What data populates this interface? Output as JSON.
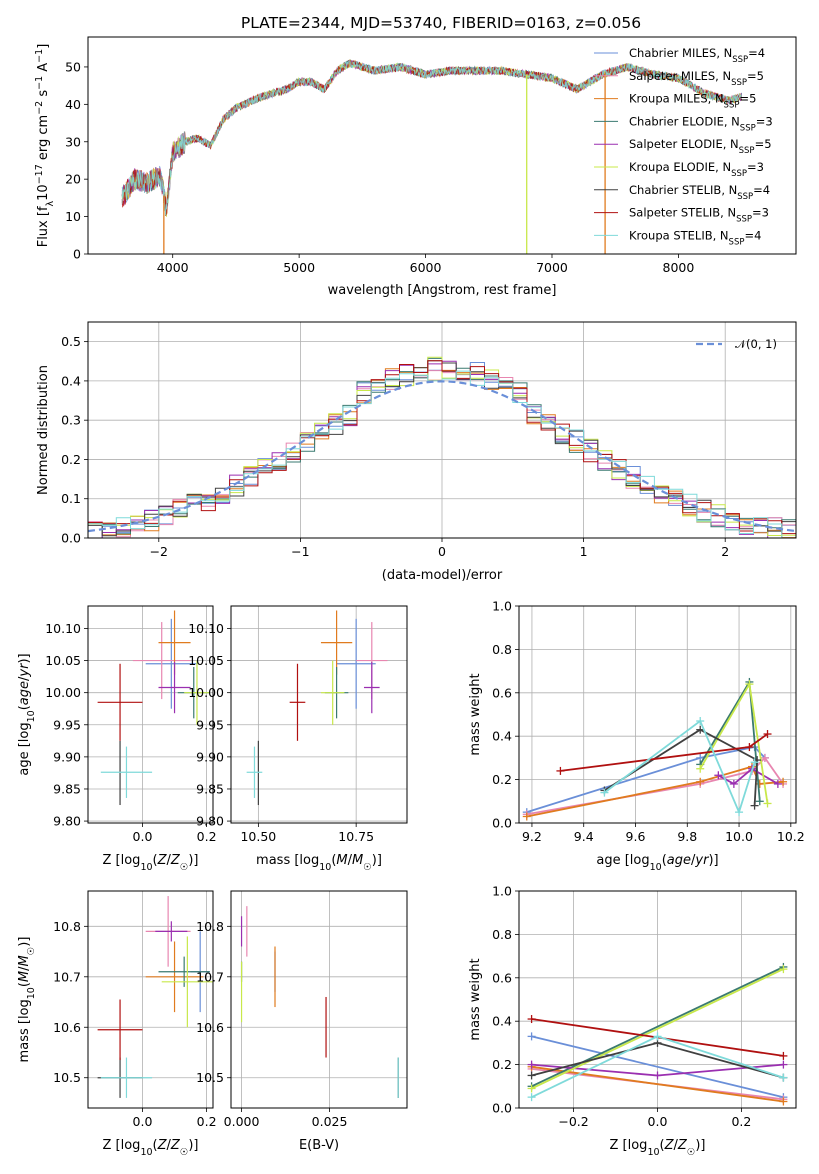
{
  "title": "PLATE=2344, MJD=53740, FIBERID=0163, z=0.056",
  "models": [
    {
      "name": "Chabrier MILES",
      "n": "4",
      "color": "#6a8fd8"
    },
    {
      "name": "Salpeter MILES",
      "n": "5",
      "color": "#e886b0"
    },
    {
      "name": "Kroupa MILES",
      "n": "5",
      "color": "#e07b1f"
    },
    {
      "name": "Chabrier ELODIE",
      "n": "3",
      "color": "#3a7a70"
    },
    {
      "name": "Salpeter ELODIE",
      "n": "5",
      "color": "#9a2fb0"
    },
    {
      "name": "Kroupa ELODIE",
      "n": "3",
      "color": "#c8e84a"
    },
    {
      "name": "Chabrier STELIB",
      "n": "4",
      "color": "#404040"
    },
    {
      "name": "Salpeter STELIB",
      "n": "3",
      "color": "#b01010"
    },
    {
      "name": "Kroupa STELIB",
      "n": "4",
      "color": "#7fdada"
    }
  ],
  "labels": {
    "spec_x": "wavelength [Angstrom, rest frame]",
    "spec_y": "Flux [f",
    "resid_x": "(data-model)/error",
    "resid_y": "Normed distribution",
    "gauss": "𝒩(0, 1)",
    "age_y": "age  [log",
    "mass_y": "mass [log",
    "z_x": "Z [log",
    "mass_x": "mass [log",
    "ebv_x": "E(B-V)",
    "mw_y": "mass weight",
    "age_x": "age  [log"
  },
  "chart_data": [
    {
      "type": "line",
      "title": "PLATE=2344, MJD=53740, FIBERID=0163, z=0.056",
      "xlabel": "wavelength [Angstrom, rest frame]",
      "ylabel": "Flux [fλ10^-17 erg cm^-2 s^-1 A^-1]",
      "xlim": [
        3330,
        8930
      ],
      "ylim": [
        0,
        58
      ],
      "xticks": [
        4000,
        5000,
        6000,
        7000,
        8000
      ],
      "yticks": [
        0,
        10,
        20,
        30,
        40,
        50
      ],
      "continuum": [
        [
          3600,
          15
        ],
        [
          3700,
          20
        ],
        [
          3800,
          19
        ],
        [
          3900,
          21
        ],
        [
          3950,
          12
        ],
        [
          4000,
          27
        ],
        [
          4100,
          30
        ],
        [
          4200,
          31
        ],
        [
          4300,
          29
        ],
        [
          4400,
          36
        ],
        [
          4500,
          39
        ],
        [
          4700,
          42
        ],
        [
          4900,
          44
        ],
        [
          5000,
          46
        ],
        [
          5100,
          46
        ],
        [
          5200,
          44
        ],
        [
          5300,
          49
        ],
        [
          5400,
          51
        ],
        [
          5600,
          49
        ],
        [
          5800,
          50
        ],
        [
          6000,
          48
        ],
        [
          6200,
          49
        ],
        [
          6400,
          49
        ],
        [
          6600,
          49
        ],
        [
          6800,
          48
        ],
        [
          7000,
          47
        ],
        [
          7200,
          44
        ],
        [
          7400,
          48
        ],
        [
          7600,
          50
        ],
        [
          7800,
          48
        ],
        [
          8000,
          47
        ],
        [
          8200,
          43
        ],
        [
          8400,
          41
        ],
        [
          8500,
          42
        ]
      ],
      "legend": "top-right"
    },
    {
      "type": "line",
      "xlabel": "(data-model)/error",
      "ylabel": "Normed distribution",
      "xlim": [
        -2.5,
        2.5
      ],
      "ylim": [
        0,
        0.55
      ],
      "xticks": [
        -2,
        -1,
        0,
        1,
        2
      ],
      "yticks": [
        0.0,
        0.1,
        0.2,
        0.3,
        0.4,
        0.5
      ],
      "series": [
        {
          "name": "𝒩(0, 1)",
          "function": "gaussian",
          "mean": 0,
          "sigma": 1
        }
      ],
      "legend": "top-right"
    },
    {
      "type": "scatter",
      "xlabel": "Z [log10(Z/Z☉)]",
      "ylabel": "age  [log10(age/yr)]",
      "xlim": [
        -0.17,
        0.22
      ],
      "ylim": [
        9.797,
        10.135
      ],
      "xticks": [
        0.0,
        0.2
      ],
      "yticks": [
        9.8,
        9.85,
        9.9,
        9.95,
        10.0,
        10.05,
        10.1
      ],
      "points": [
        {
          "x": 0.09,
          "y": 10.045,
          "xerr": 0.08,
          "yerr": 0.07,
          "model": "Chabrier MILES"
        },
        {
          "x": 0.06,
          "y": 10.05,
          "xerr": 0.09,
          "yerr": 0.06,
          "model": "Salpeter MILES"
        },
        {
          "x": 0.1,
          "y": 10.078,
          "xerr": 0.05,
          "yerr": 0.05,
          "model": "Kroupa MILES"
        },
        {
          "x": 0.16,
          "y": 10.0,
          "xerr": 0.05,
          "yerr": 0.04,
          "model": "Chabrier ELODIE"
        },
        {
          "x": 0.1,
          "y": 10.008,
          "xerr": 0.05,
          "yerr": 0.04,
          "model": "Salpeter ELODIE"
        },
        {
          "x": 0.17,
          "y": 10.0,
          "xerr": 0.04,
          "yerr": 0.05,
          "model": "Kroupa ELODIE"
        },
        {
          "x": -0.07,
          "y": 9.875,
          "xerr": 0.0,
          "yerr": 0.05,
          "model": "Chabrier STELIB"
        },
        {
          "x": -0.07,
          "y": 9.985,
          "xerr": 0.07,
          "yerr": 0.06,
          "model": "Salpeter STELIB"
        },
        {
          "x": -0.05,
          "y": 9.876,
          "xerr": 0.08,
          "yerr": 0.04,
          "model": "Kroupa STELIB"
        }
      ]
    },
    {
      "type": "scatter",
      "xlabel": "mass [log10(M/M☉)]",
      "ylabel": "",
      "xlim": [
        10.43,
        10.88
      ],
      "ylim": [
        9.797,
        10.135
      ],
      "xticks": [
        10.5,
        10.75
      ],
      "yticks": [
        9.8,
        9.85,
        9.9,
        9.95,
        10.0,
        10.05,
        10.1
      ],
      "points": [
        {
          "x": 10.75,
          "y": 10.045,
          "xerr": 0.05,
          "yerr": 0.07,
          "model": "Chabrier MILES"
        },
        {
          "x": 10.79,
          "y": 10.05,
          "xerr": 0.04,
          "yerr": 0.06,
          "model": "Salpeter MILES"
        },
        {
          "x": 10.7,
          "y": 10.078,
          "xerr": 0.04,
          "yerr": 0.05,
          "model": "Kroupa MILES"
        },
        {
          "x": 10.7,
          "y": 10.0,
          "xerr": 0.03,
          "yerr": 0.04,
          "model": "Chabrier ELODIE"
        },
        {
          "x": 10.79,
          "y": 10.008,
          "xerr": 0.02,
          "yerr": 0.04,
          "model": "Salpeter ELODIE"
        },
        {
          "x": 10.69,
          "y": 10.0,
          "xerr": 0.03,
          "yerr": 0.05,
          "model": "Kroupa ELODIE"
        },
        {
          "x": 10.5,
          "y": 9.875,
          "xerr": 0.0,
          "yerr": 0.05,
          "model": "Chabrier STELIB"
        },
        {
          "x": 10.6,
          "y": 9.985,
          "xerr": 0.02,
          "yerr": 0.06,
          "model": "Salpeter STELIB"
        },
        {
          "x": 10.49,
          "y": 9.876,
          "xerr": 0.02,
          "yerr": 0.04,
          "model": "Kroupa STELIB"
        }
      ]
    },
    {
      "type": "line",
      "xlabel": "age  [log10(age/yr)]",
      "ylabel": "mass weight",
      "xlim": [
        9.15,
        10.22
      ],
      "ylim": [
        0,
        1
      ],
      "xticks": [
        9.2,
        9.4,
        9.6,
        9.8,
        10.0,
        10.2
      ],
      "yticks": [
        0.0,
        0.2,
        0.4,
        0.6,
        0.8,
        1.0
      ],
      "series": [
        {
          "name": "Chabrier MILES",
          "x": [
            9.18,
            9.85,
            10.06,
            10.1
          ],
          "y": [
            0.05,
            0.3,
            0.35,
            0.3
          ]
        },
        {
          "name": "Salpeter MILES",
          "x": [
            9.18,
            9.85,
            10.05,
            10.1,
            10.17
          ],
          "y": [
            0.04,
            0.18,
            0.24,
            0.3,
            0.18
          ]
        },
        {
          "name": "Kroupa MILES",
          "x": [
            9.18,
            9.85,
            10.05,
            10.08,
            10.17
          ],
          "y": [
            0.03,
            0.19,
            0.26,
            0.18,
            0.19
          ]
        },
        {
          "name": "Chabrier ELODIE",
          "x": [
            9.85,
            10.04,
            10.08
          ],
          "y": [
            0.27,
            0.65,
            0.1
          ]
        },
        {
          "name": "Salpeter ELODIE",
          "x": [
            9.92,
            9.98,
            10.05,
            10.15
          ],
          "y": [
            0.22,
            0.18,
            0.25,
            0.18
          ]
        },
        {
          "name": "Kroupa ELODIE",
          "x": [
            9.85,
            10.04,
            10.11
          ],
          "y": [
            0.25,
            0.64,
            0.09
          ]
        },
        {
          "name": "Chabrier STELIB",
          "x": [
            9.48,
            9.85,
            10.07,
            10.06
          ],
          "y": [
            0.15,
            0.43,
            0.29,
            0.08
          ]
        },
        {
          "name": "Salpeter STELIB",
          "x": [
            9.31,
            10.04,
            10.11
          ],
          "y": [
            0.24,
            0.35,
            0.41
          ]
        },
        {
          "name": "Kroupa STELIB",
          "x": [
            9.48,
            9.85,
            10.0,
            10.06
          ],
          "y": [
            0.14,
            0.47,
            0.05,
            0.28
          ]
        }
      ]
    },
    {
      "type": "scatter",
      "xlabel": "Z [log10(Z/Z☉)]",
      "ylabel": "mass [log10(M/M☉)]",
      "xlim": [
        -0.17,
        0.22
      ],
      "ylim": [
        10.44,
        10.87
      ],
      "xticks": [
        0.0,
        0.2
      ],
      "yticks": [
        10.5,
        10.6,
        10.7,
        10.8
      ],
      "points": [
        {
          "x": 0.18,
          "y": 10.71,
          "xerr": 0.03,
          "yerr": 0.08,
          "model": "Chabrier MILES"
        },
        {
          "x": 0.08,
          "y": 10.79,
          "xerr": 0.07,
          "yerr": 0.07,
          "model": "Salpeter MILES"
        },
        {
          "x": 0.1,
          "y": 10.7,
          "xerr": 0.09,
          "yerr": 0.07,
          "model": "Kroupa MILES"
        },
        {
          "x": 0.13,
          "y": 10.71,
          "xerr": 0.08,
          "yerr": 0.03,
          "model": "Chabrier ELODIE"
        },
        {
          "x": 0.09,
          "y": 10.79,
          "xerr": 0.05,
          "yerr": 0.02,
          "model": "Salpeter ELODIE"
        },
        {
          "x": 0.14,
          "y": 10.69,
          "xerr": 0.08,
          "yerr": 0.09,
          "model": "Kroupa ELODIE"
        },
        {
          "x": -0.07,
          "y": 10.5,
          "xerr": 0.07,
          "yerr": 0.04,
          "model": "Chabrier STELIB"
        },
        {
          "x": -0.07,
          "y": 10.595,
          "xerr": 0.07,
          "yerr": 0.06,
          "model": "Salpeter STELIB"
        },
        {
          "x": -0.05,
          "y": 10.5,
          "xerr": 0.08,
          "yerr": 0.04,
          "model": "Kroupa STELIB"
        }
      ]
    },
    {
      "type": "scatter",
      "xlabel": "E(B-V)",
      "ylabel": "",
      "xlim": [
        -0.003,
        0.047
      ],
      "ylim": [
        10.44,
        10.87
      ],
      "xticks": [
        0.0,
        0.025
      ],
      "yticks": [
        10.5,
        10.6,
        10.7,
        10.8
      ],
      "points": [
        {
          "x": 0.0095,
          "y": 10.71,
          "yerr": 0.04,
          "model": "Chabrier MILES"
        },
        {
          "x": 0.0015,
          "y": 10.79,
          "yerr": 0.05,
          "model": "Salpeter MILES"
        },
        {
          "x": 0.0095,
          "y": 10.7,
          "yerr": 0.06,
          "model": "Kroupa MILES"
        },
        {
          "x": 0.0,
          "y": 10.71,
          "yerr": 0.02,
          "model": "Chabrier ELODIE"
        },
        {
          "x": 0.0,
          "y": 10.79,
          "yerr": 0.03,
          "model": "Salpeter ELODIE"
        },
        {
          "x": 0.0,
          "y": 10.67,
          "yerr": 0.06,
          "model": "Kroupa ELODIE"
        },
        {
          "x": 0.0445,
          "y": 10.5,
          "yerr": 0.04,
          "model": "Chabrier STELIB"
        },
        {
          "x": 0.024,
          "y": 10.6,
          "yerr": 0.06,
          "model": "Salpeter STELIB"
        },
        {
          "x": 0.0445,
          "y": 10.5,
          "yerr": 0.04,
          "model": "Kroupa STELIB"
        }
      ]
    },
    {
      "type": "line",
      "xlabel": "Z [log10(Z/Z☉)]",
      "ylabel": "mass weight",
      "xlim": [
        -0.33,
        0.33
      ],
      "ylim": [
        0,
        1
      ],
      "xticks": [
        -0.2,
        0.0,
        0.2
      ],
      "yticks": [
        0.0,
        0.2,
        0.4,
        0.6,
        0.8,
        1.0
      ],
      "series": [
        {
          "name": "Chabrier MILES",
          "x": [
            -0.3,
            0.3
          ],
          "y": [
            0.33,
            0.05
          ]
        },
        {
          "name": "Salpeter MILES",
          "x": [
            -0.3,
            0.3
          ],
          "y": [
            0.18,
            0.04
          ]
        },
        {
          "name": "Kroupa MILES",
          "x": [
            -0.3,
            0.3
          ],
          "y": [
            0.19,
            0.03
          ]
        },
        {
          "name": "Chabrier ELODIE",
          "x": [
            -0.3,
            0.3
          ],
          "y": [
            0.1,
            0.65
          ]
        },
        {
          "name": "Salpeter ELODIE",
          "x": [
            -0.3,
            0.0,
            0.3
          ],
          "y": [
            0.2,
            0.15,
            0.2
          ]
        },
        {
          "name": "Kroupa ELODIE",
          "x": [
            -0.3,
            0.3
          ],
          "y": [
            0.09,
            0.64
          ]
        },
        {
          "name": "Chabrier STELIB",
          "x": [
            -0.3,
            0.0,
            0.3
          ],
          "y": [
            0.15,
            0.3,
            0.14
          ]
        },
        {
          "name": "Salpeter STELIB",
          "x": [
            -0.3,
            0.3
          ],
          "y": [
            0.41,
            0.24
          ]
        },
        {
          "name": "Kroupa STELIB",
          "x": [
            -0.3,
            0.0,
            0.3
          ],
          "y": [
            0.05,
            0.33,
            0.14
          ]
        }
      ]
    }
  ]
}
